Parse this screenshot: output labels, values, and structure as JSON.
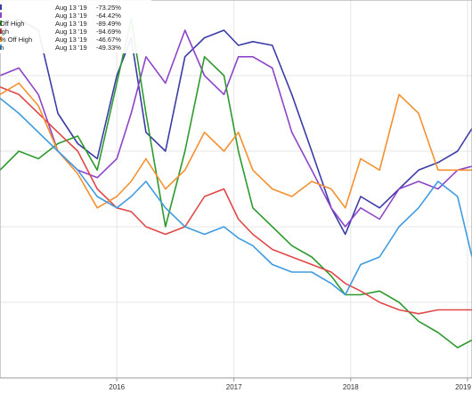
{
  "chart_data": {
    "type": "line",
    "x_domain": [
      "2015-01-01",
      "2019-01-15"
    ],
    "ylim": [
      -100,
      0
    ],
    "grid": true,
    "legend_placement": "top-left",
    "x_ticks": [
      {
        "label": "2016",
        "date": "2016-01-01"
      },
      {
        "label": "2017",
        "date": "2017-01-01"
      },
      {
        "label": "2018",
        "date": "2018-01-01"
      },
      {
        "label": "2019",
        "date": "2019-01-01"
      }
    ],
    "legend": [
      {
        "name": "",
        "color": "#3b3ba8",
        "date": "Aug 13 '19",
        "value": "-73.25%"
      },
      {
        "name": "",
        "color": "#8e44c8",
        "date": "Aug 13 '19",
        "value": "-64.42%"
      },
      {
        "name": "Off High",
        "color": "#2e9a2e",
        "date": "Aug 13 '19",
        "value": "-89.49%"
      },
      {
        "name": "igh",
        "color": "#e04848",
        "date": "Aug 13 '19",
        "value": "-94.69%"
      },
      {
        "name": "% Off High",
        "color": "#f39030",
        "date": "Aug 13 '19",
        "value": "-46.67%"
      },
      {
        "name": "n",
        "color": "#3f9be0",
        "date": "Aug 13 '19",
        "value": "-49.33%"
      }
    ],
    "series": [
      {
        "color": "#3b3ba8",
        "x": [
          "2015-01-01",
          "2015-03-01",
          "2015-05-01",
          "2015-07-01",
          "2015-09-01",
          "2015-11-01",
          "2016-01-01",
          "2016-02-15",
          "2016-04-01",
          "2016-06-01",
          "2016-08-01",
          "2016-10-01",
          "2016-12-01",
          "2017-01-15",
          "2017-03-01",
          "2017-05-01",
          "2017-07-01",
          "2017-09-01",
          "2017-11-01",
          "2017-12-15",
          "2018-02-01",
          "2018-04-01",
          "2018-06-01",
          "2018-08-01",
          "2018-10-01",
          "2018-12-01",
          "2019-01-15"
        ],
        "values": [
          -8,
          -5,
          -8,
          -30,
          -38,
          -42,
          -20,
          -10,
          -35,
          -40,
          -15,
          -10,
          -8,
          -12,
          -11,
          -12,
          -25,
          -40,
          -55,
          -62,
          -52,
          -55,
          -50,
          -45,
          -43,
          -40,
          -34
        ]
      },
      {
        "color": "#8e44c8",
        "x": [
          "2015-01-01",
          "2015-03-01",
          "2015-05-01",
          "2015-07-01",
          "2015-09-01",
          "2015-11-01",
          "2016-01-01",
          "2016-02-15",
          "2016-04-01",
          "2016-06-01",
          "2016-08-01",
          "2016-10-01",
          "2016-12-01",
          "2017-01-15",
          "2017-03-01",
          "2017-05-01",
          "2017-07-01",
          "2017-09-01",
          "2017-11-01",
          "2017-12-15",
          "2018-02-01",
          "2018-04-01",
          "2018-06-01",
          "2018-08-01",
          "2018-10-01",
          "2018-12-01",
          "2019-01-15"
        ],
        "values": [
          -20,
          -18,
          -25,
          -40,
          -45,
          -47,
          -42,
          -30,
          -15,
          -22,
          -8,
          -20,
          -25,
          -15,
          -15,
          -18,
          -35,
          -45,
          -55,
          -60,
          -55,
          -58,
          -50,
          -48,
          -50,
          -45,
          -44
        ]
      },
      {
        "color": "#2e9a2e",
        "x": [
          "2015-01-01",
          "2015-03-01",
          "2015-05-01",
          "2015-07-01",
          "2015-09-01",
          "2015-11-01",
          "2016-01-01",
          "2016-02-15",
          "2016-04-01",
          "2016-06-01",
          "2016-08-01",
          "2016-10-01",
          "2016-12-01",
          "2017-01-15",
          "2017-03-01",
          "2017-05-01",
          "2017-07-01",
          "2017-09-01",
          "2017-11-01",
          "2017-12-15",
          "2018-02-01",
          "2018-04-01",
          "2018-06-01",
          "2018-08-01",
          "2018-10-01",
          "2018-12-01",
          "2019-01-15"
        ],
        "values": [
          -45,
          -40,
          -42,
          -38,
          -36,
          -45,
          -22,
          -5,
          -30,
          -60,
          -40,
          -15,
          -20,
          -40,
          -55,
          -60,
          -65,
          -68,
          -73,
          -78,
          -78,
          -77,
          -80,
          -85,
          -88,
          -92,
          -90
        ]
      },
      {
        "color": "#e04848",
        "x": [
          "2015-01-01",
          "2015-03-01",
          "2015-05-01",
          "2015-07-01",
          "2015-09-01",
          "2015-11-01",
          "2016-01-01",
          "2016-02-15",
          "2016-04-01",
          "2016-06-01",
          "2016-08-01",
          "2016-10-01",
          "2016-12-01",
          "2017-01-15",
          "2017-03-01",
          "2017-05-01",
          "2017-07-01",
          "2017-09-01",
          "2017-11-01",
          "2017-12-15",
          "2018-02-01",
          "2018-04-01",
          "2018-06-01",
          "2018-08-01",
          "2018-10-01",
          "2018-12-01",
          "2019-01-15"
        ],
        "values": [
          -23,
          -25,
          -30,
          -35,
          -40,
          -50,
          -55,
          -56,
          -60,
          -62,
          -60,
          -52,
          -50,
          -58,
          -62,
          -66,
          -68,
          -70,
          -72,
          -75,
          -77,
          -80,
          -82,
          -83,
          -82,
          -82,
          -82
        ]
      },
      {
        "color": "#f39030",
        "x": [
          "2015-01-01",
          "2015-03-01",
          "2015-05-01",
          "2015-07-01",
          "2015-09-01",
          "2015-11-01",
          "2016-01-01",
          "2016-02-15",
          "2016-04-01",
          "2016-06-01",
          "2016-08-01",
          "2016-10-01",
          "2016-12-01",
          "2017-01-15",
          "2017-03-01",
          "2017-05-01",
          "2017-07-01",
          "2017-09-01",
          "2017-11-01",
          "2017-12-15",
          "2018-02-01",
          "2018-04-01",
          "2018-06-01",
          "2018-08-01",
          "2018-10-01",
          "2018-12-01",
          "2019-01-15"
        ],
        "values": [
          -25,
          -22,
          -28,
          -40,
          -46,
          -55,
          -52,
          -48,
          -42,
          -50,
          -45,
          -35,
          -40,
          -35,
          -45,
          -50,
          -52,
          -48,
          -50,
          -55,
          -42,
          -45,
          -25,
          -30,
          -45,
          -45,
          -45
        ]
      },
      {
        "color": "#3f9be0",
        "x": [
          "2015-01-01",
          "2015-03-01",
          "2015-05-01",
          "2015-07-01",
          "2015-09-01",
          "2015-11-01",
          "2016-01-01",
          "2016-02-15",
          "2016-04-01",
          "2016-06-01",
          "2016-08-01",
          "2016-10-01",
          "2016-12-01",
          "2017-01-15",
          "2017-03-01",
          "2017-05-01",
          "2017-07-01",
          "2017-09-01",
          "2017-11-01",
          "2017-12-15",
          "2018-02-01",
          "2018-04-01",
          "2018-06-01",
          "2018-08-01",
          "2018-10-01",
          "2018-12-01",
          "2019-01-15"
        ],
        "values": [
          -26,
          -30,
          -35,
          -40,
          -45,
          -52,
          -55,
          -52,
          -48,
          -55,
          -60,
          -62,
          -60,
          -63,
          -65,
          -70,
          -72,
          -72,
          -75,
          -78,
          -70,
          -68,
          -60,
          -55,
          -48,
          -52,
          -68
        ]
      }
    ]
  }
}
